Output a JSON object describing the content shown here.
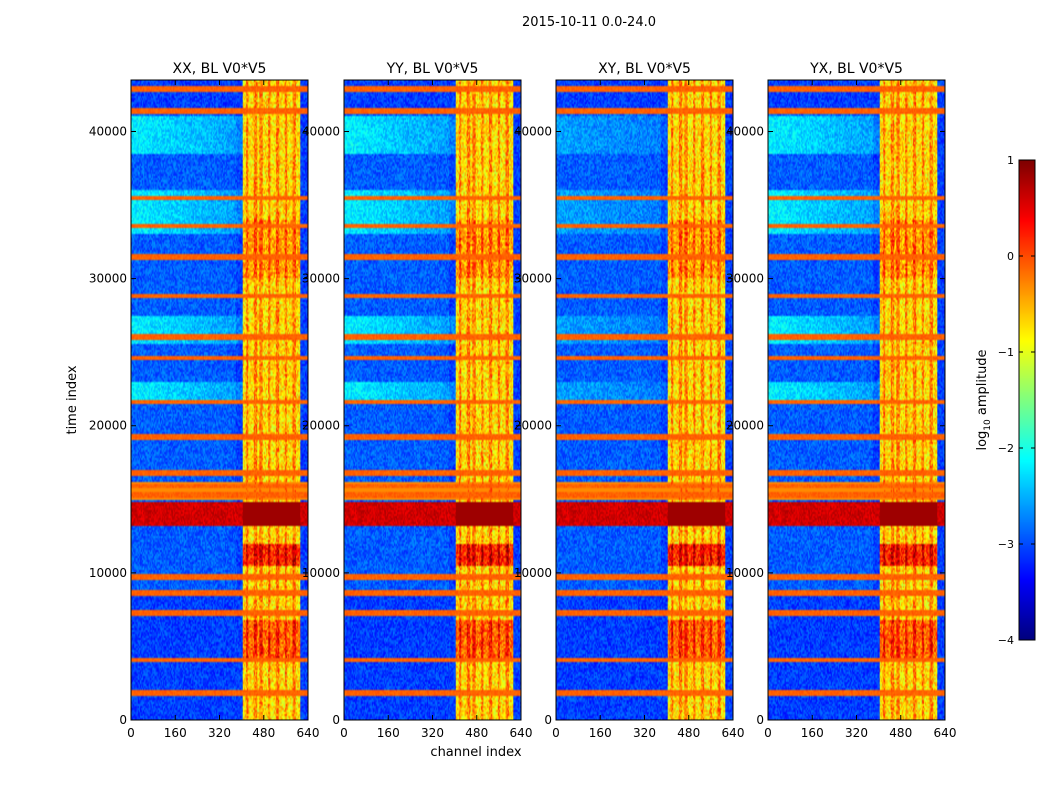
{
  "chart_data": {
    "type": "heatmap",
    "suptitle": "2015-10-11 0.0-24.0",
    "xlabel": "channel index",
    "ylabel": "time index",
    "xlim": [
      0,
      640
    ],
    "ylim": [
      0,
      43500
    ],
    "xticks": [
      0,
      160,
      320,
      480,
      640
    ],
    "yticks": [
      0,
      10000,
      20000,
      30000,
      40000
    ],
    "panels": [
      {
        "title": "XX, BL V0*V5"
      },
      {
        "title": "YY, BL V0*V5"
      },
      {
        "title": "XY, BL V0*V5"
      },
      {
        "title": "YX, BL V0*V5"
      }
    ],
    "colorbar": {
      "label": "log",
      "label_sub": "10",
      "label_rest": " amplitude",
      "range": [
        -4,
        1
      ],
      "ticks": [
        "1",
        "0",
        "−1",
        "−2",
        "−3",
        "−4"
      ],
      "tick_values": [
        1,
        0,
        -1,
        -2,
        -3,
        -4
      ],
      "colormap": "jet"
    },
    "features": {
      "rfi_channel_band": [
        405,
        610
      ],
      "rfi_channel_lines": [
        420,
        450,
        470,
        500,
        530,
        560,
        590
      ],
      "strong_time_band": [
        13200,
        14800
      ],
      "strong_time_band2": [
        10500,
        12000
      ],
      "bright_time_rows": [
        1800,
        4100,
        7300,
        8600,
        9700,
        15300,
        15900,
        16800,
        19200,
        21600,
        24600,
        26000,
        28800,
        31500,
        33600,
        35500,
        41400,
        42900
      ],
      "sky_bands": [
        [
          25500,
          27500
        ],
        [
          33000,
          36000
        ],
        [
          38500,
          41000
        ],
        [
          21500,
          23000
        ]
      ]
    }
  }
}
